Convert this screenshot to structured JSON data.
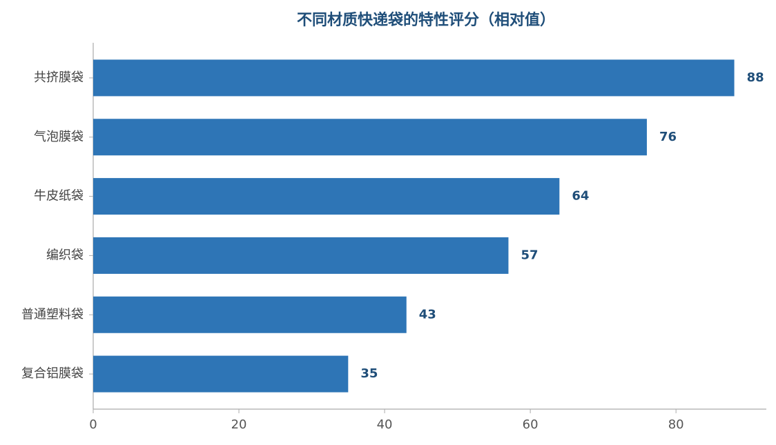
{
  "chart_data": {
    "type": "barh",
    "title": "不同材质快递袋的特性评分（相对值）",
    "categories": [
      "共挤膜袋",
      "气泡膜袋",
      "牛皮纸袋",
      "编织袋",
      "普通塑料袋",
      "复合铝膜袋"
    ],
    "values": [
      88,
      76,
      64,
      57,
      43,
      35
    ],
    "color": "#2e75b6",
    "xlim": [
      0,
      92.4
    ],
    "xticks": [
      0,
      20,
      40,
      60,
      80
    ],
    "grid": false
  }
}
